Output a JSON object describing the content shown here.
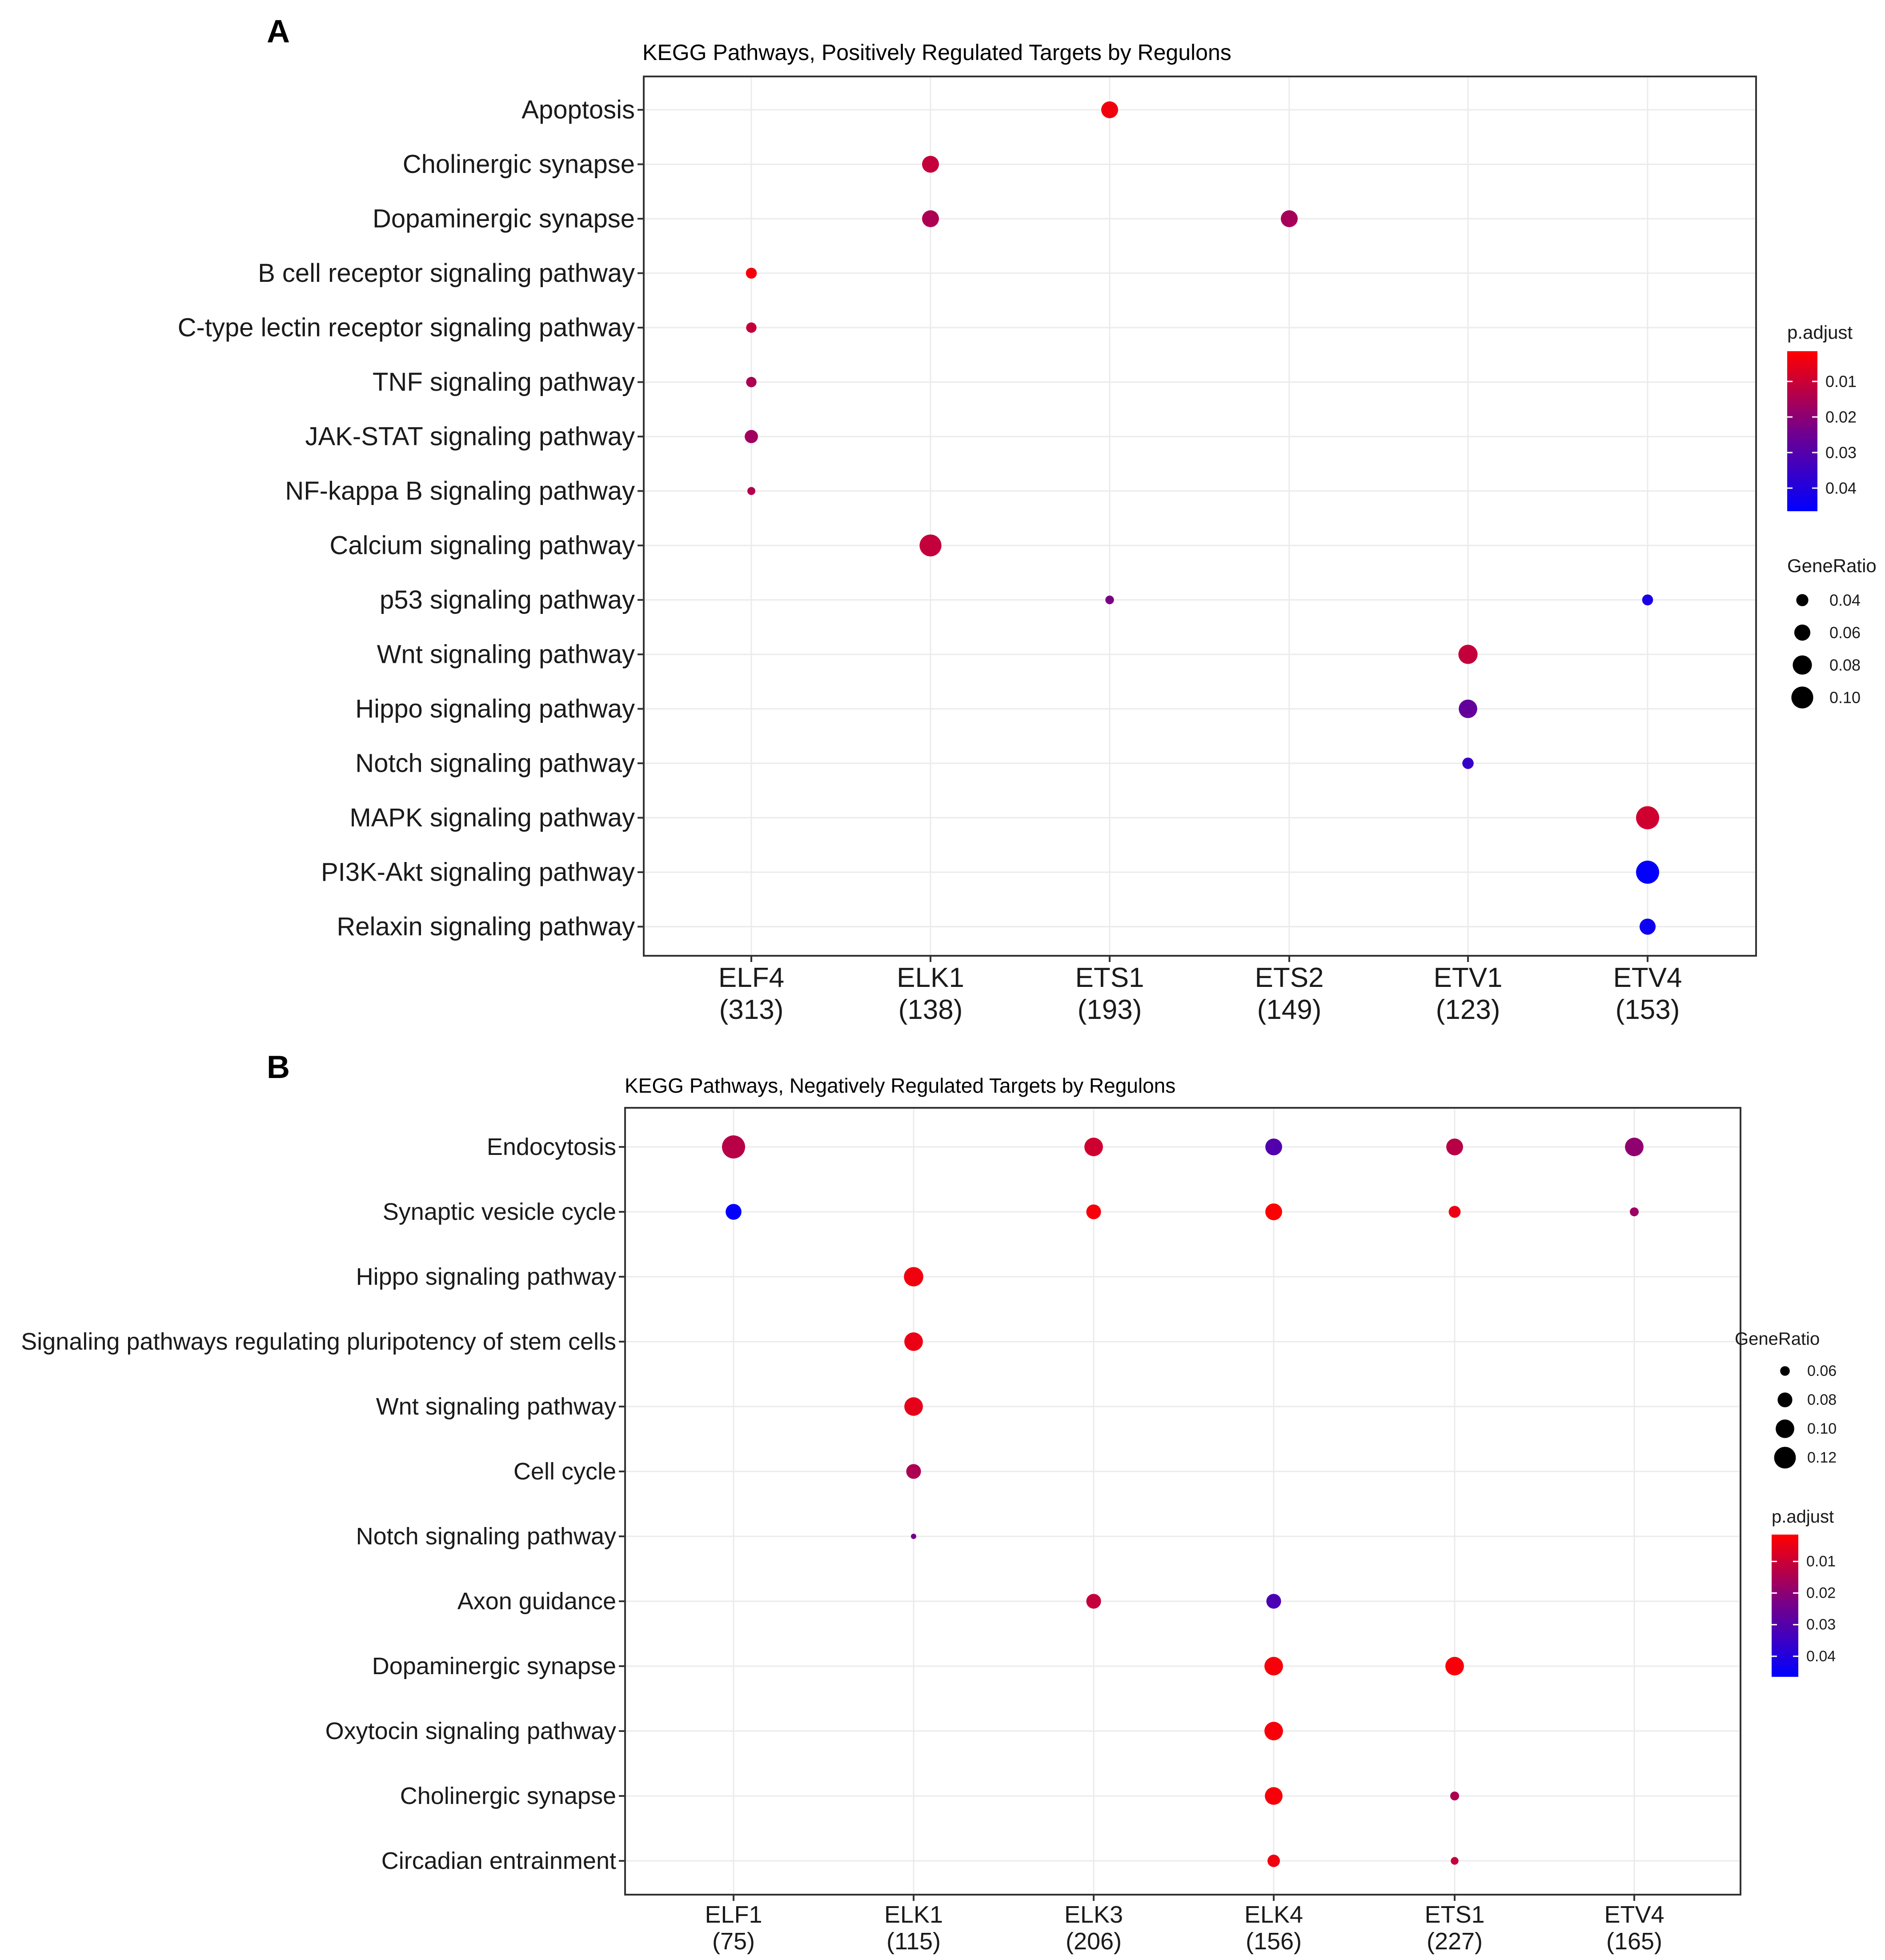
{
  "figure": {
    "panels": [
      {
        "label": "A"
      },
      {
        "label": "B"
      }
    ]
  },
  "chart_data": [
    {
      "type": "scatter",
      "subtype": "dot-plot",
      "panel_label": "A",
      "title": "KEGG Pathways, Positively Regulated Targets by Regulons",
      "xlabel": "",
      "ylabel": "",
      "categories": [
        {
          "name": "ELF4",
          "count": "(313)"
        },
        {
          "name": "ELK1",
          "count": "(138)"
        },
        {
          "name": "ETS1",
          "count": "(193)"
        },
        {
          "name": "ETS2",
          "count": "(149)"
        },
        {
          "name": "ETV1",
          "count": "(123)"
        },
        {
          "name": "ETV4",
          "count": "(153)"
        }
      ],
      "pathways": [
        "Apoptosis",
        "Cholinergic synapse",
        "Dopaminergic synapse",
        "B cell receptor signaling pathway",
        "C-type lectin receptor signaling pathway",
        "TNF signaling pathway",
        "JAK-STAT signaling pathway",
        "NF-kappa B signaling pathway",
        "Calcium signaling pathway",
        "p53 signaling pathway",
        "Wnt signaling pathway",
        "Hippo signaling pathway",
        "Notch signaling pathway",
        "MAPK signaling pathway",
        "PI3K-Akt signaling pathway",
        "Relaxin signaling pathway"
      ],
      "points": [
        {
          "x": "ETS1",
          "y": "Apoptosis",
          "gene_ratio": 0.065,
          "p_adjust": 0.004
        },
        {
          "x": "ELK1",
          "y": "Cholinergic synapse",
          "gene_ratio": 0.065,
          "p_adjust": 0.012
        },
        {
          "x": "ELK1",
          "y": "Dopaminergic synapse",
          "gene_ratio": 0.065,
          "p_adjust": 0.016
        },
        {
          "x": "ETS2",
          "y": "Dopaminergic synapse",
          "gene_ratio": 0.065,
          "p_adjust": 0.017
        },
        {
          "x": "ELF4",
          "y": "B cell receptor signaling pathway",
          "gene_ratio": 0.035,
          "p_adjust": 0.003
        },
        {
          "x": "ELF4",
          "y": "C-type lectin receptor signaling pathway",
          "gene_ratio": 0.033,
          "p_adjust": 0.012
        },
        {
          "x": "ELF4",
          "y": "TNF signaling pathway",
          "gene_ratio": 0.033,
          "p_adjust": 0.016
        },
        {
          "x": "ELF4",
          "y": "JAK-STAT signaling pathway",
          "gene_ratio": 0.045,
          "p_adjust": 0.018
        },
        {
          "x": "ELF4",
          "y": "NF-kappa B signaling pathway",
          "gene_ratio": 0.025,
          "p_adjust": 0.015
        },
        {
          "x": "ELK1",
          "y": "Calcium signaling pathway",
          "gene_ratio": 0.1,
          "p_adjust": 0.012
        },
        {
          "x": "ETS1",
          "y": "p53 signaling pathway",
          "gene_ratio": 0.027,
          "p_adjust": 0.025
        },
        {
          "x": "ETV4",
          "y": "p53 signaling pathway",
          "gene_ratio": 0.035,
          "p_adjust": 0.042
        },
        {
          "x": "ETV1",
          "y": "Wnt signaling pathway",
          "gene_ratio": 0.08,
          "p_adjust": 0.012
        },
        {
          "x": "ETV1",
          "y": "Hippo signaling pathway",
          "gene_ratio": 0.075,
          "p_adjust": 0.029
        },
        {
          "x": "ETV1",
          "y": "Notch signaling pathway",
          "gene_ratio": 0.037,
          "p_adjust": 0.037
        },
        {
          "x": "ETV4",
          "y": "MAPK signaling pathway",
          "gene_ratio": 0.11,
          "p_adjust": 0.01
        },
        {
          "x": "ETV4",
          "y": "PI3K-Akt signaling pathway",
          "gene_ratio": 0.11,
          "p_adjust": 0.046
        },
        {
          "x": "ETV4",
          "y": "Relaxin signaling pathway",
          "gene_ratio": 0.06,
          "p_adjust": 0.044
        }
      ],
      "legend": {
        "position": "right",
        "color_title": "p.adjust",
        "color_ticks": [
          "0.01",
          "0.02",
          "0.03",
          "0.04"
        ],
        "color_tick_values": [
          0.01,
          0.02,
          0.03,
          0.04
        ],
        "color_range": [
          0.0015,
          0.0465
        ],
        "low_color": "#ff0000",
        "high_color": "#0000ff",
        "size_title": "GeneRatio",
        "size_ticks": [
          "0.04",
          "0.06",
          "0.08",
          "0.10"
        ],
        "size_tick_values": [
          0.04,
          0.06,
          0.08,
          0.1
        ],
        "size_range": [
          0.025,
          0.11
        ],
        "order": [
          "color",
          "size"
        ]
      },
      "grid": true
    },
    {
      "type": "scatter",
      "subtype": "dot-plot",
      "panel_label": "B",
      "title": "KEGG Pathways, Negatively Regulated Targets by Regulons",
      "xlabel": "",
      "ylabel": "",
      "categories": [
        {
          "name": "ELF1",
          "count": "(75)"
        },
        {
          "name": "ELK1",
          "count": "(115)"
        },
        {
          "name": "ELK3",
          "count": "(206)"
        },
        {
          "name": "ELK4",
          "count": "(156)"
        },
        {
          "name": "ETS1",
          "count": "(227)"
        },
        {
          "name": "ETV4",
          "count": "(165)"
        }
      ],
      "pathways": [
        "Endocytosis",
        "Synaptic vesicle cycle",
        "Hippo signaling pathway",
        "Signaling pathways regulating pluripotency of stem cells",
        "Wnt signaling pathway",
        "Cell cycle",
        "Notch signaling pathway",
        "Axon guidance",
        "Dopaminergic synapse",
        "Oxytocin signaling pathway",
        "Cholinergic synapse",
        "Circadian entrainment"
      ],
      "points": [
        {
          "x": "ELF1",
          "y": "Endocytosis",
          "gene_ratio": 0.13,
          "p_adjust": 0.014
        },
        {
          "x": "ELK3",
          "y": "Endocytosis",
          "gene_ratio": 0.1,
          "p_adjust": 0.01
        },
        {
          "x": "ELK4",
          "y": "Endocytosis",
          "gene_ratio": 0.09,
          "p_adjust": 0.032
        },
        {
          "x": "ETS1",
          "y": "Endocytosis",
          "gene_ratio": 0.09,
          "p_adjust": 0.014
        },
        {
          "x": "ETV4",
          "y": "Endocytosis",
          "gene_ratio": 0.1,
          "p_adjust": 0.021
        },
        {
          "x": "ELF1",
          "y": "Synaptic vesicle cycle",
          "gene_ratio": 0.085,
          "p_adjust": 0.046
        },
        {
          "x": "ELK3",
          "y": "Synaptic vesicle cycle",
          "gene_ratio": 0.08,
          "p_adjust": 0.003
        },
        {
          "x": "ELK4",
          "y": "Synaptic vesicle cycle",
          "gene_ratio": 0.09,
          "p_adjust": 0.002
        },
        {
          "x": "ETS1",
          "y": "Synaptic vesicle cycle",
          "gene_ratio": 0.068,
          "p_adjust": 0.005
        },
        {
          "x": "ETV4",
          "y": "Synaptic vesicle cycle",
          "gene_ratio": 0.058,
          "p_adjust": 0.019
        },
        {
          "x": "ELK1",
          "y": "Hippo signaling pathway",
          "gene_ratio": 0.105,
          "p_adjust": 0.004
        },
        {
          "x": "ELK1",
          "y": "Signaling pathways regulating pluripotency of stem cells",
          "gene_ratio": 0.1,
          "p_adjust": 0.005
        },
        {
          "x": "ELK1",
          "y": "Wnt signaling pathway",
          "gene_ratio": 0.1,
          "p_adjust": 0.006
        },
        {
          "x": "ELK1",
          "y": "Cell cycle",
          "gene_ratio": 0.08,
          "p_adjust": 0.016
        },
        {
          "x": "ELK1",
          "y": "Notch signaling pathway",
          "gene_ratio": 0.05,
          "p_adjust": 0.026
        },
        {
          "x": "ELK3",
          "y": "Axon guidance",
          "gene_ratio": 0.08,
          "p_adjust": 0.012
        },
        {
          "x": "ELK4",
          "y": "Axon guidance",
          "gene_ratio": 0.08,
          "p_adjust": 0.033
        },
        {
          "x": "ELK4",
          "y": "Dopaminergic synapse",
          "gene_ratio": 0.1,
          "p_adjust": 0.003
        },
        {
          "x": "ETS1",
          "y": "Dopaminergic synapse",
          "gene_ratio": 0.1,
          "p_adjust": 0.003
        },
        {
          "x": "ELK4",
          "y": "Oxytocin signaling pathway",
          "gene_ratio": 0.1,
          "p_adjust": 0.003
        },
        {
          "x": "ELK4",
          "y": "Cholinergic synapse",
          "gene_ratio": 0.095,
          "p_adjust": 0.003
        },
        {
          "x": "ETS1",
          "y": "Cholinergic synapse",
          "gene_ratio": 0.058,
          "p_adjust": 0.016
        },
        {
          "x": "ELK4",
          "y": "Circadian entrainment",
          "gene_ratio": 0.07,
          "p_adjust": 0.004
        },
        {
          "x": "ETS1",
          "y": "Circadian entrainment",
          "gene_ratio": 0.055,
          "p_adjust": 0.012
        }
      ],
      "legend": {
        "position": "right",
        "color_title": "p.adjust",
        "color_ticks": [
          "0.01",
          "0.02",
          "0.03",
          "0.04"
        ],
        "color_tick_values": [
          0.01,
          0.02,
          0.03,
          0.04
        ],
        "color_range": [
          0.0015,
          0.0465
        ],
        "low_color": "#ff0000",
        "high_color": "#0000ff",
        "size_title": "GeneRatio",
        "size_ticks": [
          "0.06",
          "0.08",
          "0.10",
          "0.12"
        ],
        "size_tick_values": [
          0.06,
          0.08,
          0.1,
          0.12
        ],
        "size_range": [
          0.05,
          0.13
        ],
        "order": [
          "size",
          "color"
        ]
      },
      "grid": true
    }
  ]
}
